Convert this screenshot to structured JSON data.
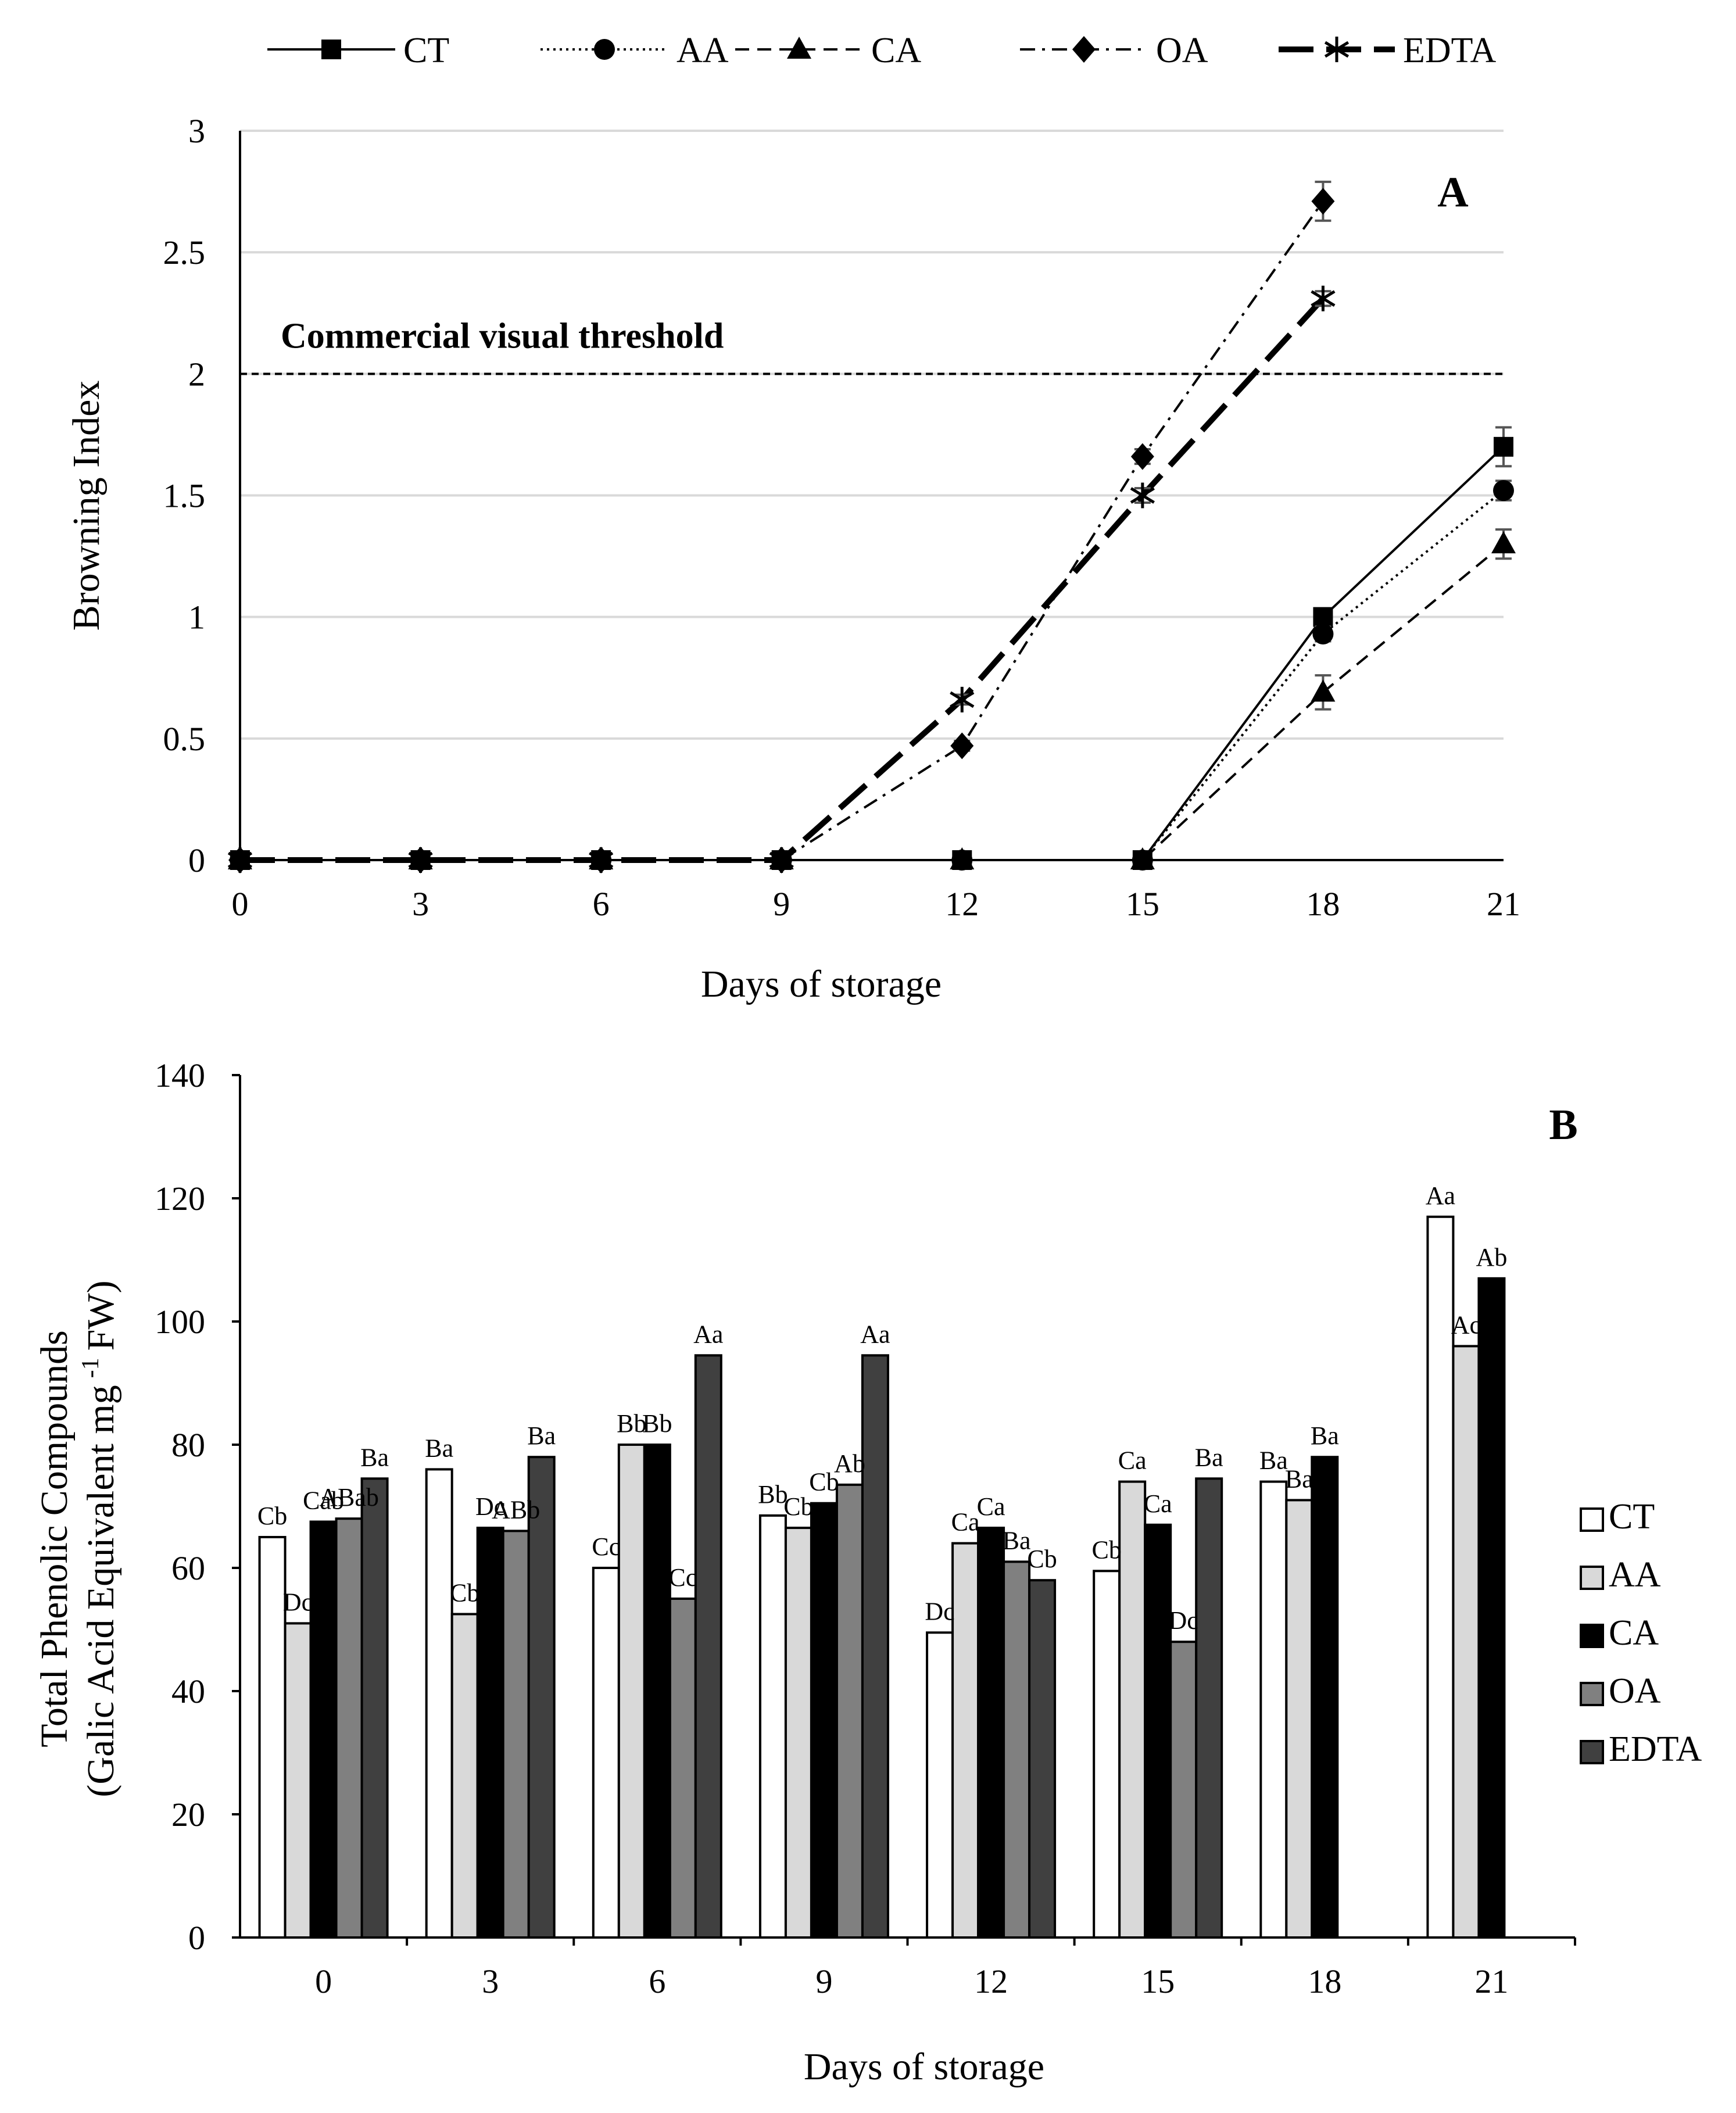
{
  "chart_data": [
    {
      "type": "line",
      "panel_label": "A",
      "xlabel": "Days of storage",
      "ylabel": "Browning Index",
      "x": [
        0,
        3,
        6,
        9,
        12,
        15,
        18,
        21
      ],
      "x_ticks": [
        "0",
        "3",
        "6",
        "9",
        "12",
        "15",
        "18",
        "21"
      ],
      "ylim": [
        0,
        3
      ],
      "y_ticks": [
        "0",
        "0.5",
        "1",
        "1.5",
        "2",
        "2.5",
        "3"
      ],
      "grid": "horizontal",
      "legend_position": "top",
      "threshold": {
        "value": 2,
        "label": "Commercial visual threshold"
      },
      "series": [
        {
          "name": "CT",
          "marker": "square",
          "line": "solid",
          "values": [
            0,
            0,
            0,
            0,
            0,
            0,
            1.0,
            1.7
          ],
          "errors": [
            0,
            0,
            0,
            0,
            0,
            0,
            0.03,
            0.08
          ]
        },
        {
          "name": "AA",
          "marker": "circle",
          "line": "dotted",
          "values": [
            0,
            0,
            0,
            0,
            0,
            0,
            0.93,
            1.52
          ],
          "errors": [
            0,
            0,
            0,
            0,
            0,
            0,
            0.03,
            0.04
          ]
        },
        {
          "name": "CA",
          "marker": "triangle",
          "line": "dashed",
          "values": [
            0,
            0,
            0,
            0,
            0,
            0,
            0.69,
            1.3
          ],
          "errors": [
            0,
            0,
            0,
            0,
            0,
            0,
            0.07,
            0.06
          ]
        },
        {
          "name": "OA",
          "marker": "diamond",
          "line": "dashdot",
          "values": [
            0,
            0,
            0,
            0,
            0.47,
            1.66,
            2.71,
            null
          ],
          "errors": [
            0,
            0,
            0,
            0,
            0.02,
            0.03,
            0.08,
            0
          ]
        },
        {
          "name": "EDTA",
          "marker": "asterisk",
          "line": "longdash",
          "values": [
            0,
            0,
            0,
            0,
            0.66,
            1.5,
            2.31,
            null
          ],
          "errors": [
            0,
            0,
            0,
            0,
            0.02,
            0.03,
            0.03,
            0
          ]
        }
      ]
    },
    {
      "type": "bar",
      "panel_label": "B",
      "xlabel": "Days of storage",
      "ylabel_line1": "Total Phenolic Compounds",
      "ylabel_line2": "(Galic Acid Equivalent mg",
      "ylabel_sup": "-1",
      "ylabel_end": "FW)",
      "categories": [
        "0",
        "3",
        "6",
        "9",
        "12",
        "15",
        "18",
        "21"
      ],
      "ylim": [
        0,
        140
      ],
      "y_ticks": [
        "0",
        "20",
        "40",
        "60",
        "80",
        "100",
        "120",
        "140"
      ],
      "grid": "none",
      "legend_position": "right",
      "series": [
        {
          "name": "CT",
          "color": "#ffffff",
          "values": [
            65,
            76,
            60,
            68.5,
            49.5,
            59.5,
            74,
            117
          ],
          "labels": [
            "Cb",
            "Ba",
            "Cc",
            "Bb",
            "Dc",
            "Cb",
            "Ba",
            "Aa"
          ]
        },
        {
          "name": "AA",
          "color": "#d9d9d9",
          "values": [
            51,
            52.5,
            80,
            66.5,
            64,
            74,
            71,
            96
          ],
          "labels": [
            "Dc",
            "Cb",
            "Bb",
            "Cb",
            "Ca",
            "Ca",
            "Ba",
            "Ac"
          ]
        },
        {
          "name": "CA",
          "color": "#000000",
          "values": [
            67.5,
            66.5,
            80,
            70.5,
            66.5,
            67,
            78,
            107
          ],
          "labels": [
            "Cab",
            "Dc",
            "Bb",
            "Cb",
            "Ca",
            "Ca",
            "Ba",
            "Ab"
          ]
        },
        {
          "name": "OA",
          "color": "#808080",
          "values": [
            68,
            66,
            55,
            73.5,
            61,
            48,
            null,
            null
          ],
          "labels": [
            "ABab",
            "ABb",
            "Cc",
            "Ab",
            "Ba",
            "Dc",
            "",
            ""
          ]
        },
        {
          "name": "EDTA",
          "color": "#404040",
          "values": [
            74.5,
            78,
            94.5,
            94.5,
            58,
            74.5,
            null,
            null
          ],
          "labels": [
            "Ba",
            "Ba",
            "Aa",
            "Aa",
            "Cb",
            "Ba",
            "",
            ""
          ]
        }
      ]
    }
  ]
}
